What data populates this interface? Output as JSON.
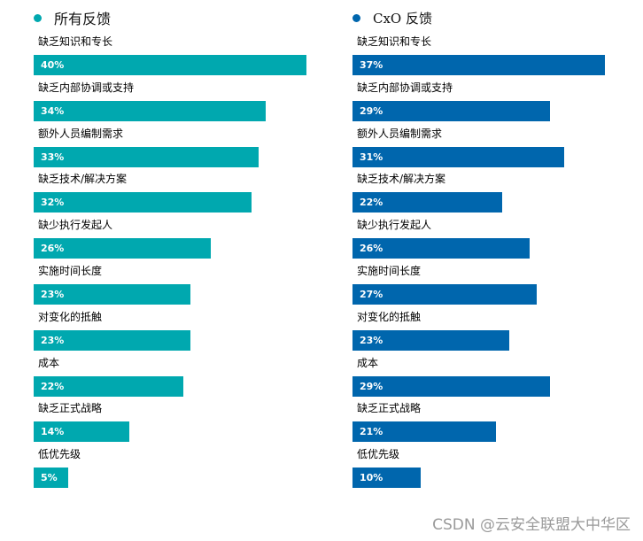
{
  "chart_data": [
    {
      "type": "bar",
      "orientation": "horizontal",
      "title": "所有反馈",
      "color": "#00A8AF",
      "categories": [
        "缺乏知识和专长",
        "缺乏内部协调或支持",
        "额外人员编制需求",
        "缺乏技术/解决方案",
        "缺少执行发起人",
        "实施时间长度",
        "对变化的抵触",
        "成本",
        "缺乏正式战略",
        "低优先级"
      ],
      "values": [
        40,
        34,
        33,
        32,
        26,
        23,
        23,
        22,
        14,
        5
      ],
      "value_labels": [
        "40%",
        "34%",
        "33%",
        "32%",
        "26%",
        "23%",
        "23%",
        "22%",
        "14%",
        "5%"
      ],
      "unit": "%",
      "xlabel": "",
      "ylabel": "",
      "grid": false
    },
    {
      "type": "bar",
      "orientation": "horizontal",
      "title": "CxO 反馈",
      "color": "#0066AD",
      "categories": [
        "缺乏知识和专长",
        "缺乏内部协调或支持",
        "额外人员编制需求",
        "缺乏技术/解决方案",
        "缺少执行发起人",
        "实施时间长度",
        "对变化的抵触",
        "成本",
        "缺乏正式战略",
        "低优先级"
      ],
      "values": [
        37,
        29,
        31,
        22,
        26,
        27,
        23,
        29,
        21,
        10
      ],
      "value_labels": [
        "37%",
        "29%",
        "31%",
        "22%",
        "26%",
        "27%",
        "23%",
        "29%",
        "21%",
        "10%"
      ],
      "unit": "%",
      "xlabel": "",
      "ylabel": "",
      "grid": false
    }
  ],
  "left": {
    "legend_title": "所有反馈",
    "color": "#00A8AF",
    "rows": [
      {
        "label": "缺乏知识和专长",
        "value": "40%",
        "pct": 40
      },
      {
        "label": "缺乏内部协调或支持",
        "value": "34%",
        "pct": 34
      },
      {
        "label": "额外人员编制需求",
        "value": "33%",
        "pct": 33
      },
      {
        "label": "缺乏技术/解决方案",
        "value": "32%",
        "pct": 32
      },
      {
        "label": "缺少执行发起人",
        "value": "26%",
        "pct": 26
      },
      {
        "label": "实施时间长度",
        "value": "23%",
        "pct": 23
      },
      {
        "label": "对变化的抵触",
        "value": "23%",
        "pct": 23
      },
      {
        "label": "成本",
        "value": "22%",
        "pct": 22
      },
      {
        "label": "缺乏正式战略",
        "value": "14%",
        "pct": 14
      },
      {
        "label": "低优先级",
        "value": "5%",
        "pct": 5
      }
    ]
  },
  "right": {
    "legend_title": "CxO 反馈",
    "color": "#0066AD",
    "rows": [
      {
        "label": "缺乏知识和专长",
        "value": "37%",
        "pct": 37
      },
      {
        "label": "缺乏内部协调或支持",
        "value": "29%",
        "pct": 29
      },
      {
        "label": "额外人员编制需求",
        "value": "31%",
        "pct": 31
      },
      {
        "label": "缺乏技术/解决方案",
        "value": "22%",
        "pct": 22
      },
      {
        "label": "缺少执行发起人",
        "value": "26%",
        "pct": 26
      },
      {
        "label": "实施时间长度",
        "value": "27%",
        "pct": 27
      },
      {
        "label": "对变化的抵触",
        "value": "23%",
        "pct": 23
      },
      {
        "label": "成本",
        "value": "29%",
        "pct": 29
      },
      {
        "label": "缺乏正式战略",
        "value": "21%",
        "pct": 21
      },
      {
        "label": "低优先级",
        "value": "10%",
        "pct": 10
      }
    ]
  },
  "watermark": "CSDN @云安全联盟大中华区"
}
